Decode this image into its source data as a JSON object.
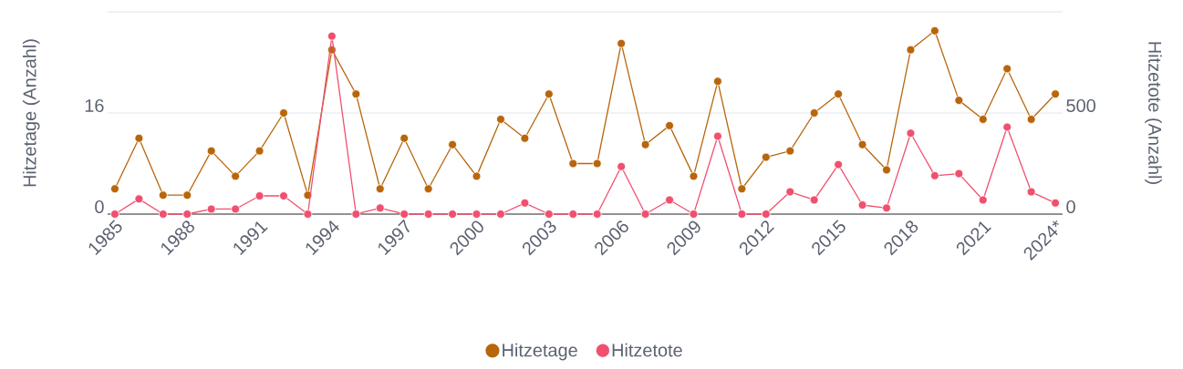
{
  "chart_data": {
    "type": "line",
    "categories": [
      "1985",
      null,
      null,
      "1988",
      null,
      null,
      "1991",
      null,
      null,
      "1994",
      null,
      null,
      "1997",
      null,
      null,
      "2000",
      null,
      null,
      "2003",
      null,
      null,
      "2006",
      null,
      null,
      "2009",
      null,
      null,
      "2012",
      null,
      null,
      "2015",
      null,
      null,
      "2018",
      null,
      null,
      "2021",
      null,
      null,
      "2024*"
    ],
    "series": [
      {
        "name": "Hitzetage",
        "color": "#b8660b",
        "values": [
          4,
          12,
          3,
          3,
          10,
          6,
          10,
          16,
          3,
          26,
          19,
          4,
          12,
          4,
          11,
          6,
          15,
          12,
          19,
          8,
          8,
          27,
          11,
          14,
          6,
          21,
          4,
          9,
          10,
          16,
          19,
          11,
          7,
          26,
          29,
          18,
          15,
          23,
          15,
          19
        ]
      },
      {
        "name": "Hitzetote",
        "color": "#f0506e",
        "axis": "y2",
        "values": [
          0,
          75,
          0,
          0,
          25,
          25,
          90,
          90,
          0,
          880,
          0,
          30,
          0,
          0,
          0,
          0,
          0,
          55,
          0,
          0,
          0,
          235,
          0,
          70,
          0,
          385,
          0,
          0,
          110,
          70,
          245,
          45,
          30,
          400,
          190,
          200,
          70,
          430,
          110,
          55
        ]
      }
    ],
    "ylabel": "Hitzetage (Anzahl)",
    "y2label": "Hitzetote (Anzahl)",
    "ylim": [
      0,
      32
    ],
    "yticks": [
      0,
      16,
      {
        "value": 32,
        "label": null
      }
    ],
    "y2lim": [
      0,
      1000
    ],
    "y2ticks": [
      0,
      500
    ],
    "grid": "y",
    "legend": "bottom",
    "marker": "circle",
    "line_style": "solid"
  }
}
